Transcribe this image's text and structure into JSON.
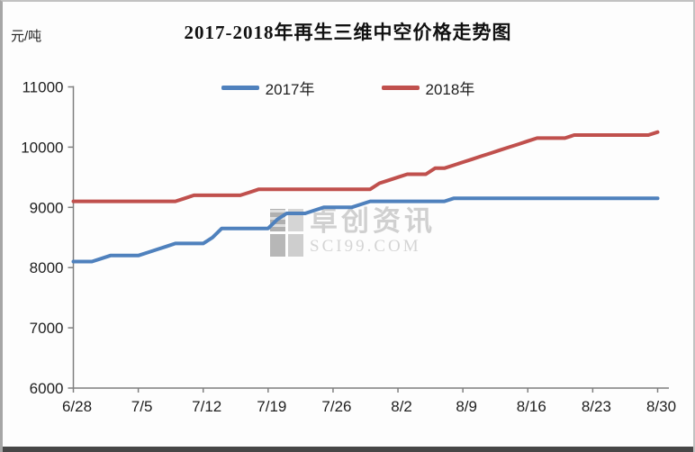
{
  "header": {
    "title": "2017-2018年再生三维中空价格走势图",
    "y_unit_label": "元/吨"
  },
  "legend": {
    "items": [
      {
        "label": "2017年",
        "color": "#4f81bd"
      },
      {
        "label": "2018年",
        "color": "#c0504d"
      }
    ]
  },
  "watermark": {
    "brand": "卓创资讯",
    "domain": "SCI99.COM"
  },
  "chart_data": {
    "type": "line",
    "title": "2017-2018年再生三维中空价格走势图",
    "xlabel": "",
    "ylabel": "元/吨",
    "ylim": [
      6000,
      11000
    ],
    "ytick_interval": 1000,
    "yticks": [
      6000,
      7000,
      8000,
      9000,
      10000,
      11000
    ],
    "xtick_labels": [
      "6/28",
      "7/5",
      "7/12",
      "7/19",
      "7/26",
      "8/2",
      "8/9",
      "8/16",
      "8/23",
      "8/30"
    ],
    "x_frequency": "daily",
    "x_days_per_labeled_tick": 7,
    "grid": false,
    "legend_position": "top-center",
    "axis_color": "#7f7f7f",
    "tick_label_color": "#1f1f1f",
    "series": [
      {
        "name": "2017年",
        "color": "#4f81bd",
        "values": [
          8100,
          8100,
          8100,
          8150,
          8200,
          8200,
          8200,
          8200,
          8250,
          8300,
          8350,
          8400,
          8400,
          8400,
          8400,
          8500,
          8650,
          8650,
          8650,
          8650,
          8650,
          8650,
          8800,
          8900,
          8900,
          8900,
          8950,
          9000,
          9000,
          9000,
          9000,
          9050,
          9100,
          9100,
          9100,
          9100,
          9100,
          9100,
          9100,
          9100,
          9100,
          9150,
          9150,
          9150,
          9150,
          9150,
          9150,
          9150,
          9150,
          9150,
          9150,
          9150,
          9150,
          9150,
          9150,
          9150,
          9150,
          9150,
          9150,
          9150,
          9150,
          9150,
          9150,
          9150
        ]
      },
      {
        "name": "2018年",
        "color": "#c0504d",
        "values": [
          9100,
          9100,
          9100,
          9100,
          9100,
          9100,
          9100,
          9100,
          9100,
          9100,
          9100,
          9100,
          9150,
          9200,
          9200,
          9200,
          9200,
          9200,
          9200,
          9250,
          9300,
          9300,
          9300,
          9300,
          9300,
          9300,
          9300,
          9300,
          9300,
          9300,
          9300,
          9300,
          9300,
          9400,
          9450,
          9500,
          9550,
          9550,
          9550,
          9650,
          9650,
          9700,
          9750,
          9800,
          9850,
          9900,
          9950,
          10000,
          10050,
          10100,
          10150,
          10150,
          10150,
          10150,
          10200,
          10200,
          10200,
          10200,
          10200,
          10200,
          10200,
          10200,
          10200,
          10250
        ]
      }
    ]
  }
}
